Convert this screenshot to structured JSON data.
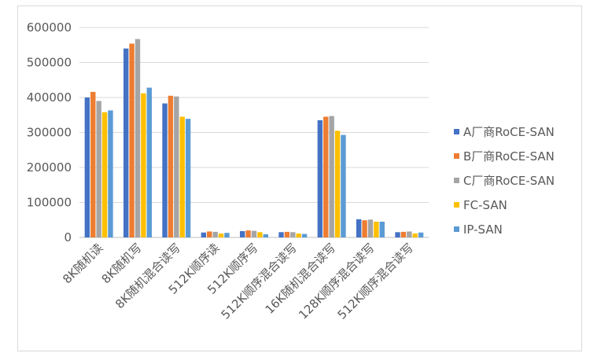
{
  "chart_data": {
    "type": "bar",
    "title": "",
    "xlabel": "",
    "ylabel": "",
    "ylim": [
      0,
      600000
    ],
    "yticks": [
      0,
      100000,
      200000,
      300000,
      400000,
      500000,
      600000
    ],
    "ytick_labels": [
      "0",
      "100000",
      "200000",
      "300000",
      "400000",
      "500000",
      "600000"
    ],
    "grid": true,
    "legend_position": "right",
    "categories": [
      "8K随机读",
      "8K随机写",
      "8K随机混合读写",
      "512K顺序读",
      "512K顺序写",
      "512K顺序混合读写",
      "16K随机混合读写",
      "128K顺序混合读写",
      "512K顺序混合读写"
    ],
    "series": [
      {
        "name": "A厂商RoCE-SAN",
        "color": "#4472c4",
        "values": [
          400000,
          540000,
          383000,
          14000,
          18000,
          15000,
          335000,
          52000,
          15000
        ]
      },
      {
        "name": "B厂商RoCE-SAN",
        "color": "#ed7d31",
        "values": [
          416000,
          554000,
          405000,
          17000,
          20000,
          16000,
          345000,
          49000,
          16000
        ]
      },
      {
        "name": "C厂商RoCE-SAN",
        "color": "#a5a5a5",
        "values": [
          390000,
          567000,
          403000,
          16000,
          19000,
          15000,
          347000,
          51000,
          17000
        ]
      },
      {
        "name": "FC-SAN",
        "color": "#ffc000",
        "values": [
          358000,
          412000,
          345000,
          11000,
          15000,
          11000,
          305000,
          45000,
          11000
        ]
      },
      {
        "name": "IP-SAN",
        "color": "#5b9bd5",
        "values": [
          363000,
          428000,
          339000,
          13000,
          9000,
          10000,
          293000,
          45000,
          14000
        ]
      }
    ]
  }
}
